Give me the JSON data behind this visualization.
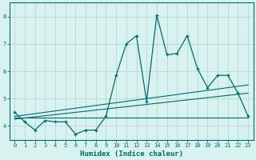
{
  "xlabel": "Humidex (Indice chaleur)",
  "background_color": "#d8f2f0",
  "grid_color": "#b8d8d4",
  "line_color": "#006b6b",
  "spine_color": "#006b6b",
  "tick_color": "#006b6b",
  "xlabel_color": "#006b6b",
  "xlim": [
    -0.5,
    23.5
  ],
  "ylim": [
    3.5,
    8.5
  ],
  "xtick_vals": [
    0,
    1,
    2,
    3,
    4,
    5,
    6,
    7,
    8,
    9,
    10,
    11,
    12,
    13,
    14,
    15,
    16,
    17,
    18,
    19,
    20,
    21,
    22,
    23
  ],
  "ytick_vals": [
    4,
    5,
    6,
    7,
    8
  ],
  "main_x": [
    0,
    1,
    2,
    3,
    4,
    5,
    6,
    7,
    8,
    9,
    10,
    11,
    12,
    13,
    14,
    15,
    16,
    17,
    18,
    19,
    20,
    21,
    22,
    23
  ],
  "main_y": [
    4.5,
    4.15,
    3.85,
    4.2,
    4.15,
    4.15,
    3.7,
    3.85,
    3.85,
    4.35,
    5.85,
    7.0,
    7.3,
    4.9,
    8.05,
    6.6,
    6.65,
    7.3,
    6.1,
    5.4,
    5.85,
    5.85,
    5.2,
    4.35
  ],
  "line1_x": [
    0,
    23
  ],
  "line1_y": [
    4.3,
    4.3
  ],
  "line2_x": [
    0,
    23
  ],
  "line2_y": [
    4.25,
    5.2
  ],
  "line3_x": [
    0,
    23
  ],
  "line3_y": [
    4.35,
    5.5
  ]
}
